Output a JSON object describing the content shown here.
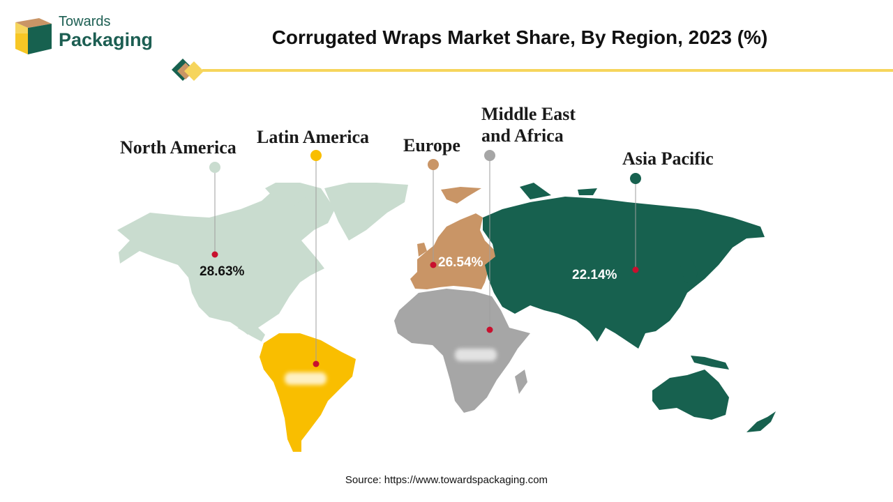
{
  "brand": {
    "line1": "Towards",
    "line2": "Packaging"
  },
  "title": "Corrugated Wraps Market Share, By Region, 2023 (%)",
  "source": "Source: https://www.towardspackaging.com",
  "colors": {
    "north_america": "#c9dccf",
    "latin_america": "#f9be00",
    "europe": "#c99566",
    "middle_east_africa": "#a6a6a6",
    "asia_pacific": "#17614f",
    "marker_dot": "#c8102e",
    "divider": "#f6d55c"
  },
  "chart_data": {
    "type": "map",
    "title": "Corrugated Wraps Market Share, By Region, 2023 (%)",
    "unit": "%",
    "regions": [
      {
        "name": "North America",
        "value": "28.63%",
        "share": 28.63,
        "color": "#c9dccf"
      },
      {
        "name": "Latin America",
        "value": "",
        "share": null,
        "color": "#f9be00"
      },
      {
        "name": "Europe",
        "value": "26.54%",
        "share": 26.54,
        "color": "#c99566"
      },
      {
        "name": "Middle East and Africa",
        "value": "",
        "share": null,
        "color": "#a6a6a6"
      },
      {
        "name": "Asia Pacific",
        "value": "22.14%",
        "share": 22.14,
        "color": "#17614f"
      }
    ]
  }
}
